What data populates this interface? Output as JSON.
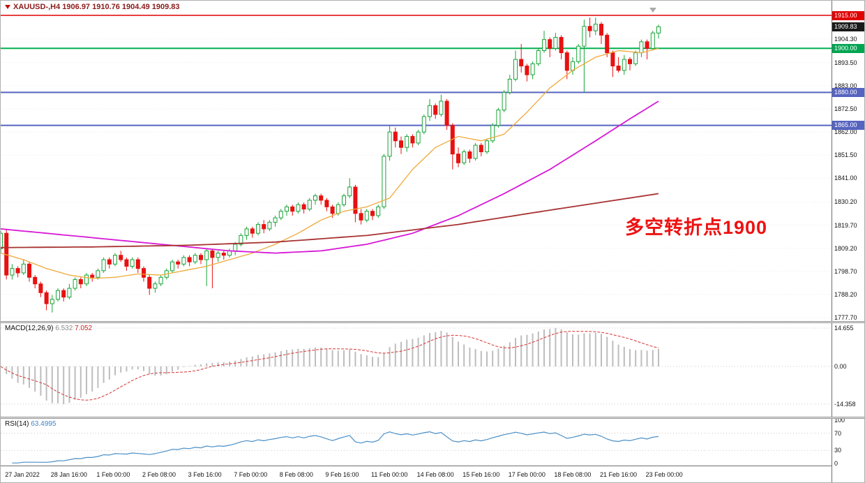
{
  "header": {
    "title": "XAUUSD-,H4 1906.97 1910.76 1904.49 1909.83"
  },
  "annotation": {
    "text": "多空转折点1900",
    "color": "#ee1111"
  },
  "colors": {
    "bull": "#17a437",
    "bull_fill": "#ffffff",
    "bear": "#e81111",
    "macd_hist": "#bdbdbd",
    "macd_signal": "#d63333",
    "rsi_line": "#4a8fc7",
    "grid": "#e8e8e8",
    "axis_text": "#111111"
  },
  "chart_data": {
    "type": "candlestick",
    "symbol": "XAUUSD-",
    "timeframe": "H4",
    "title": "XAUUSD-,H4",
    "current_ohlc": {
      "open": 1906.97,
      "high": 1910.76,
      "low": 1904.49,
      "close": 1909.83
    },
    "y_range": [
      1776.11,
      1921.66
    ],
    "ohlc": [
      [
        1809,
        1817,
        1807,
        1816
      ],
      [
        1816,
        1818,
        1795,
        1797
      ],
      [
        1797,
        1802,
        1795,
        1800
      ],
      [
        1800,
        1801,
        1796,
        1798
      ],
      [
        1798,
        1804,
        1797,
        1802
      ],
      [
        1802,
        1803,
        1794,
        1796
      ],
      [
        1796,
        1797,
        1791,
        1793
      ],
      [
        1793,
        1794,
        1787,
        1789
      ],
      [
        1789,
        1790,
        1781,
        1784
      ],
      [
        1784,
        1788,
        1780,
        1786
      ],
      [
        1786,
        1791,
        1785,
        1790
      ],
      [
        1790,
        1791,
        1785,
        1787
      ],
      [
        1787,
        1793,
        1786,
        1791
      ],
      [
        1791,
        1796,
        1790,
        1795
      ],
      [
        1795,
        1796,
        1791,
        1793
      ],
      [
        1793,
        1798,
        1792,
        1797
      ],
      [
        1797,
        1798,
        1794,
        1796
      ],
      [
        1796,
        1800,
        1795,
        1799
      ],
      [
        1799,
        1805,
        1798,
        1804
      ],
      [
        1804,
        1805,
        1800,
        1802
      ],
      [
        1802,
        1807,
        1801,
        1806
      ],
      [
        1806,
        1808,
        1803,
        1804
      ],
      [
        1804,
        1805,
        1799,
        1801
      ],
      [
        1801,
        1805,
        1800,
        1804
      ],
      [
        1804,
        1805,
        1798,
        1800
      ],
      [
        1800,
        1801,
        1794,
        1796
      ],
      [
        1796,
        1797,
        1788,
        1791
      ],
      [
        1791,
        1794,
        1789,
        1793
      ],
      [
        1793,
        1797,
        1792,
        1796
      ],
      [
        1796,
        1800,
        1795,
        1799
      ],
      [
        1799,
        1804,
        1798,
        1803
      ],
      [
        1803,
        1804,
        1800,
        1802
      ],
      [
        1802,
        1806,
        1801,
        1805
      ],
      [
        1805,
        1806,
        1801,
        1803
      ],
      [
        1803,
        1807,
        1802,
        1806
      ],
      [
        1806,
        1807,
        1802,
        1804
      ],
      [
        1804,
        1809,
        1792,
        1808
      ],
      [
        1808,
        1809,
        1791,
        1805
      ],
      [
        1805,
        1808,
        1803,
        1807
      ],
      [
        1807,
        1808,
        1804,
        1806
      ],
      [
        1806,
        1809,
        1805,
        1808
      ],
      [
        1808,
        1812,
        1806,
        1811
      ],
      [
        1811,
        1816,
        1810,
        1815
      ],
      [
        1815,
        1819,
        1813,
        1818
      ],
      [
        1818,
        1819,
        1814,
        1816
      ],
      [
        1816,
        1821,
        1815,
        1820
      ],
      [
        1820,
        1822,
        1816,
        1818
      ],
      [
        1818,
        1822,
        1817,
        1821
      ],
      [
        1821,
        1824,
        1819,
        1823
      ],
      [
        1823,
        1827,
        1822,
        1826
      ],
      [
        1826,
        1829,
        1824,
        1828
      ],
      [
        1828,
        1829,
        1824,
        1826
      ],
      [
        1826,
        1830,
        1825,
        1829
      ],
      [
        1829,
        1830,
        1825,
        1827
      ],
      [
        1827,
        1832,
        1826,
        1831
      ],
      [
        1831,
        1834,
        1829,
        1833
      ],
      [
        1833,
        1834,
        1829,
        1831
      ],
      [
        1831,
        1832,
        1826,
        1828
      ],
      [
        1828,
        1829,
        1823,
        1825
      ],
      [
        1825,
        1830,
        1824,
        1829
      ],
      [
        1829,
        1834,
        1828,
        1833
      ],
      [
        1833,
        1841,
        1832,
        1837
      ],
      [
        1837,
        1838,
        1821,
        1825
      ],
      [
        1825,
        1827,
        1820,
        1822
      ],
      [
        1822,
        1827,
        1821,
        1826
      ],
      [
        1826,
        1827,
        1822,
        1824
      ],
      [
        1824,
        1829,
        1823,
        1828
      ],
      [
        1828,
        1852,
        1827,
        1851
      ],
      [
        1851,
        1865,
        1849,
        1862
      ],
      [
        1862,
        1864,
        1855,
        1858
      ],
      [
        1858,
        1860,
        1852,
        1855
      ],
      [
        1855,
        1861,
        1853,
        1860
      ],
      [
        1860,
        1861,
        1855,
        1857
      ],
      [
        1857,
        1863,
        1856,
        1862
      ],
      [
        1862,
        1870,
        1861,
        1869
      ],
      [
        1869,
        1877,
        1867,
        1874
      ],
      [
        1874,
        1875,
        1868,
        1870
      ],
      [
        1870,
        1879,
        1869,
        1876
      ],
      [
        1876,
        1877,
        1863,
        1865
      ],
      [
        1865,
        1866,
        1845,
        1852
      ],
      [
        1852,
        1855,
        1846,
        1848
      ],
      [
        1848,
        1854,
        1847,
        1853
      ],
      [
        1853,
        1854,
        1848,
        1850
      ],
      [
        1850,
        1857,
        1849,
        1856
      ],
      [
        1856,
        1857,
        1851,
        1853
      ],
      [
        1853,
        1859,
        1852,
        1858
      ],
      [
        1858,
        1866,
        1857,
        1865
      ],
      [
        1865,
        1873,
        1864,
        1872
      ],
      [
        1872,
        1881,
        1871,
        1880
      ],
      [
        1880,
        1888,
        1879,
        1886
      ],
      [
        1886,
        1899,
        1885,
        1895
      ],
      [
        1895,
        1902,
        1889,
        1892
      ],
      [
        1892,
        1893,
        1885,
        1888
      ],
      [
        1888,
        1894,
        1886,
        1893
      ],
      [
        1893,
        1900,
        1892,
        1899
      ],
      [
        1899,
        1908,
        1898,
        1904
      ],
      [
        1904,
        1905,
        1896,
        1900
      ],
      [
        1900,
        1907,
        1899,
        1905
      ],
      [
        1905,
        1906,
        1895,
        1898
      ],
      [
        1898,
        1899,
        1886,
        1890
      ],
      [
        1890,
        1896,
        1888,
        1894
      ],
      [
        1894,
        1902,
        1893,
        1901
      ],
      [
        1901,
        1913,
        1880,
        1910
      ],
      [
        1910,
        1914,
        1905,
        1908
      ],
      [
        1908,
        1914,
        1906,
        1911
      ],
      [
        1911,
        1912,
        1902,
        1906
      ],
      [
        1906,
        1907,
        1896,
        1898
      ],
      [
        1898,
        1899,
        1887,
        1892
      ],
      [
        1892,
        1896,
        1889,
        1890
      ],
      [
        1890,
        1897,
        1888,
        1895
      ],
      [
        1895,
        1896,
        1890,
        1893
      ],
      [
        1893,
        1899,
        1892,
        1898
      ],
      [
        1898,
        1904,
        1896,
        1903
      ],
      [
        1903,
        1904,
        1895,
        1900
      ],
      [
        1900,
        1908,
        1899,
        1907
      ],
      [
        1906.97,
        1910.76,
        1904.49,
        1909.83
      ]
    ],
    "x_axis": {
      "labels": [
        "27 Jan 2022",
        "28 Jan 16:00",
        "1 Feb 00:00",
        "2 Feb 08:00",
        "3 Feb 16:00",
        "7 Feb 00:00",
        "8 Feb 08:00",
        "9 Feb 16:00",
        "11 Feb 00:00",
        "14 Feb 08:00",
        "15 Feb 16:00",
        "17 Feb 00:00",
        "18 Feb 08:00",
        "21 Feb 16:00",
        "23 Feb 00:00"
      ],
      "indices": [
        1,
        9,
        17,
        25,
        33,
        41,
        49,
        57,
        65,
        73,
        81,
        89,
        97,
        105,
        113
      ]
    },
    "y_axis": {
      "ticks": [
        {
          "price": 1904.3,
          "label": "1904.30"
        },
        {
          "price": 1893.5,
          "label": "1893.50"
        },
        {
          "price": 1883.0,
          "label": "1883.00"
        },
        {
          "price": 1872.5,
          "label": "1872.50"
        },
        {
          "price": 1862.0,
          "label": "1862.00"
        },
        {
          "price": 1851.5,
          "label": "1851.50"
        },
        {
          "price": 1841.0,
          "label": "1841.00"
        },
        {
          "price": 1830.2,
          "label": "1830.20"
        },
        {
          "price": 1819.7,
          "label": "1819.70"
        },
        {
          "price": 1809.2,
          "label": "1809.20"
        },
        {
          "price": 1798.7,
          "label": "1798.70"
        },
        {
          "price": 1788.2,
          "label": "1788.20"
        },
        {
          "price": 1777.7,
          "label": "1777.70"
        }
      ],
      "badges": [
        {
          "price": 1915.0,
          "label": "1915.00",
          "bg": "#e00000"
        },
        {
          "price": 1909.83,
          "label": "1909.83",
          "bg": "#1a1a1a"
        },
        {
          "price": 1900.0,
          "label": "1900.00",
          "bg": "#00a551"
        },
        {
          "price": 1880.0,
          "label": "1880.00",
          "bg": "#5663c0"
        },
        {
          "price": 1865.0,
          "label": "1865.00",
          "bg": "#5663c0"
        }
      ]
    },
    "hlines": [
      {
        "price": 1915.0,
        "color": "#e00000",
        "width": 1.4
      },
      {
        "price": 1900.0,
        "color": "#00b050",
        "width": 2
      },
      {
        "price": 1880.0,
        "color": "#5663c0",
        "width": 2
      },
      {
        "price": 1865.0,
        "color": "#5663c0",
        "width": 2
      }
    ],
    "moving_averages": [
      {
        "name": "ma-fast",
        "color": "#efa93a",
        "width": 1.3,
        "anchors": [
          [
            0,
            1807
          ],
          [
            4,
            1804
          ],
          [
            8,
            1800
          ],
          [
            12,
            1797
          ],
          [
            16,
            1795.5
          ],
          [
            20,
            1796
          ],
          [
            24,
            1797.5
          ],
          [
            28,
            1797
          ],
          [
            32,
            1799
          ],
          [
            36,
            1801
          ],
          [
            40,
            1804
          ],
          [
            44,
            1807
          ],
          [
            48,
            1811
          ],
          [
            52,
            1816
          ],
          [
            56,
            1822
          ],
          [
            60,
            1826
          ],
          [
            64,
            1828
          ],
          [
            68,
            1832
          ],
          [
            72,
            1845
          ],
          [
            76,
            1855
          ],
          [
            80,
            1860
          ],
          [
            84,
            1858
          ],
          [
            88,
            1861
          ],
          [
            92,
            1871
          ],
          [
            96,
            1882
          ],
          [
            100,
            1890
          ],
          [
            104,
            1896
          ],
          [
            108,
            1899
          ],
          [
            112,
            1898
          ],
          [
            115,
            1900
          ]
        ]
      },
      {
        "name": "ma-mid",
        "color": "#d619d6",
        "width": 1.8,
        "anchors": [
          [
            0,
            1818
          ],
          [
            8,
            1816
          ],
          [
            16,
            1814
          ],
          [
            24,
            1812
          ],
          [
            32,
            1810
          ],
          [
            40,
            1808
          ],
          [
            48,
            1807
          ],
          [
            56,
            1808
          ],
          [
            64,
            1811
          ],
          [
            72,
            1816
          ],
          [
            80,
            1824
          ],
          [
            88,
            1834
          ],
          [
            96,
            1845
          ],
          [
            104,
            1858
          ],
          [
            110,
            1868
          ],
          [
            115,
            1876
          ]
        ]
      },
      {
        "name": "ma-slow",
        "color": "#a83232",
        "width": 1.8,
        "anchors": [
          [
            0,
            1809.5
          ],
          [
            16,
            1809.8
          ],
          [
            32,
            1810.5
          ],
          [
            48,
            1812
          ],
          [
            64,
            1815
          ],
          [
            80,
            1820
          ],
          [
            96,
            1826.5
          ],
          [
            115,
            1834
          ]
        ]
      }
    ],
    "indicators": {
      "macd": {
        "label": "MACD(12,26,9)",
        "value_main": "6.532",
        "value_signal": "7.052",
        "params": [
          12,
          26,
          9
        ],
        "scale": {
          "max": 14.655,
          "min": -14.358
        },
        "axis_labels": [
          {
            "value": 14.655,
            "label": "14.655"
          },
          {
            "value": 0,
            "label": "0.00"
          },
          {
            "value": -14.358,
            "label": "-14.358"
          }
        ]
      },
      "rsi": {
        "label": "RSI(14)",
        "value": "63.4995",
        "period": 14,
        "levels": [
          {
            "value": 100,
            "label": "100"
          },
          {
            "value": 70,
            "label": "70"
          },
          {
            "value": 30,
            "label": "30"
          },
          {
            "value": 0,
            "label": "0"
          }
        ]
      }
    }
  }
}
